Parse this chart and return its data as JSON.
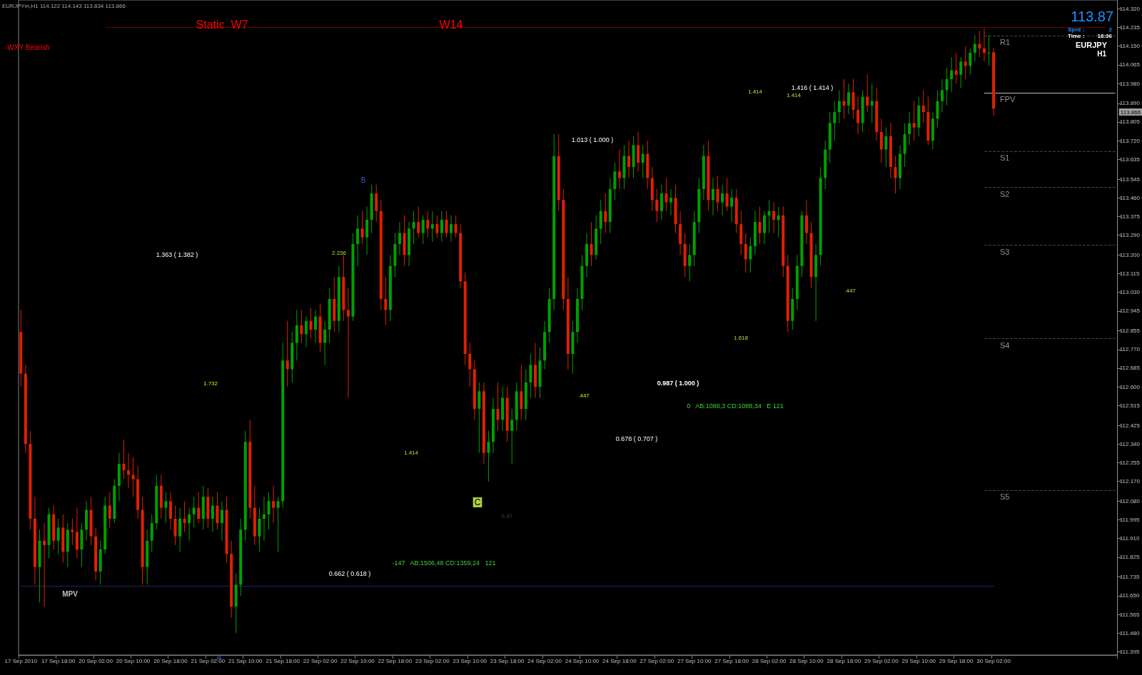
{
  "chart_data": {
    "type": "candlestick",
    "categories": [
      "17 Sep 2010",
      null,
      null,
      null,
      null,
      null,
      null,
      null,
      "17 Sep 18:00",
      null,
      null,
      null,
      null,
      null,
      null,
      null,
      "20 Sep 02:00",
      null,
      null,
      null,
      null,
      null,
      null,
      null,
      "20 Sep 10:00",
      null,
      null,
      null,
      null,
      null,
      null,
      null,
      "20 Sep 18:00",
      null,
      null,
      null,
      null,
      null,
      null,
      null,
      "21 Sep 02:00",
      null,
      null,
      null,
      null,
      null,
      null,
      null,
      "21 Sep 10:00",
      null,
      null,
      null,
      null,
      null,
      null,
      null,
      "21 Sep 18:00",
      null,
      null,
      null,
      null,
      null,
      null,
      null,
      "22 Sep 02:00",
      null,
      null,
      null,
      null,
      null,
      null,
      null,
      "22 Sep 10:00",
      null,
      null,
      null,
      null,
      null,
      null,
      null,
      "22 Sep 18:00",
      null,
      null,
      null,
      null,
      null,
      null,
      null,
      "23 Sep 02:00",
      null,
      null,
      null,
      null,
      null,
      null,
      null,
      "23 Sep 10:00",
      null,
      null,
      null,
      null,
      null,
      null,
      null,
      "23 Sep 18:00",
      null,
      null,
      null,
      null,
      null,
      null,
      null,
      "24 Sep 02:00",
      null,
      null,
      null,
      null,
      null,
      null,
      null,
      "24 Sep 10:00",
      null,
      null,
      null,
      null,
      null,
      null,
      null,
      "24 Sep 18:00",
      null,
      null,
      null,
      null,
      null,
      null,
      null,
      "27 Sep 02:00",
      null,
      null,
      null,
      null,
      null,
      null,
      null,
      "27 Sep 10:00",
      null,
      null,
      null,
      null,
      null,
      null,
      null,
      "27 Sep 18:00",
      null,
      null,
      null,
      null,
      null,
      null,
      null,
      "28 Sep 02:00",
      null,
      null,
      null,
      null,
      null,
      null,
      null,
      "28 Sep 10:00",
      null,
      null,
      null,
      null,
      null,
      null,
      null,
      "28 Sep 18:00",
      null,
      null,
      null,
      null,
      null,
      null,
      null,
      "29 Sep 02:00",
      null,
      null,
      null,
      null,
      null,
      null,
      null,
      "29 Sep 10:00",
      null,
      null,
      null,
      null,
      null,
      null,
      null,
      "29 Sep 18:00",
      null,
      null,
      null,
      null,
      null,
      null,
      null,
      "30 Sep 02:00",
      null,
      null,
      null,
      null,
      null,
      null,
      null,
      null,
      null,
      null,
      null,
      null,
      null,
      null,
      null,
      null,
      null,
      null,
      null,
      null,
      null,
      null,
      null,
      null,
      null,
      null
    ],
    "ohlc": [
      [
        112.85,
        112.95,
        112.6,
        112.66
      ],
      [
        112.66,
        112.7,
        112.3,
        112.34
      ],
      [
        112.34,
        112.4,
        111.95,
        112.0
      ],
      [
        112.0,
        112.1,
        111.7,
        111.78
      ],
      [
        111.78,
        111.95,
        111.62,
        111.9
      ],
      [
        111.9,
        111.98,
        111.6,
        111.88
      ],
      [
        111.88,
        112.05,
        111.82,
        112.02
      ],
      [
        112.02,
        112.06,
        111.86,
        111.9
      ],
      [
        111.9,
        112.0,
        111.84,
        111.96
      ],
      [
        111.96,
        112.02,
        111.8,
        111.85
      ],
      [
        111.85,
        111.98,
        111.78,
        111.95
      ],
      [
        111.95,
        112.0,
        111.88,
        111.94
      ],
      [
        111.94,
        112.05,
        111.82,
        111.86
      ],
      [
        111.86,
        111.98,
        111.78,
        111.95
      ],
      [
        111.95,
        112.08,
        111.9,
        112.04
      ],
      [
        112.04,
        112.1,
        111.88,
        111.92
      ],
      [
        111.92,
        111.96,
        111.72,
        111.76
      ],
      [
        111.76,
        111.9,
        111.7,
        111.86
      ],
      [
        111.86,
        112.1,
        111.84,
        112.06
      ],
      [
        112.06,
        112.12,
        111.96,
        112.0
      ],
      [
        112.0,
        112.18,
        111.98,
        112.15
      ],
      [
        112.15,
        112.3,
        112.08,
        112.25
      ],
      [
        112.25,
        112.36,
        112.18,
        112.22
      ],
      [
        112.22,
        112.3,
        112.14,
        112.2
      ],
      [
        112.2,
        112.28,
        112.1,
        112.18
      ],
      [
        112.18,
        112.24,
        112.0,
        112.04
      ],
      [
        112.04,
        112.1,
        111.7,
        111.78
      ],
      [
        111.78,
        111.95,
        111.7,
        111.9
      ],
      [
        111.9,
        112.02,
        111.85,
        111.98
      ],
      [
        111.98,
        112.2,
        111.95,
        112.15
      ],
      [
        112.15,
        112.2,
        112.0,
        112.05
      ],
      [
        112.05,
        112.12,
        111.98,
        112.08
      ],
      [
        112.08,
        112.12,
        111.95,
        112.0
      ],
      [
        112.0,
        112.06,
        111.88,
        111.92
      ],
      [
        111.92,
        112.05,
        111.85,
        112.0
      ],
      [
        112.0,
        112.08,
        111.94,
        111.98
      ],
      [
        111.98,
        112.05,
        111.9,
        112.02
      ],
      [
        112.02,
        112.1,
        111.96,
        112.05
      ],
      [
        112.05,
        112.12,
        111.98,
        112.0
      ],
      [
        112.0,
        112.15,
        111.95,
        112.1
      ],
      [
        112.1,
        112.14,
        111.96,
        112.0
      ],
      [
        112.0,
        112.1,
        111.94,
        112.06
      ],
      [
        112.06,
        112.12,
        111.95,
        111.98
      ],
      [
        111.98,
        112.08,
        111.9,
        112.04
      ],
      [
        112.04,
        112.1,
        111.8,
        111.84
      ],
      [
        111.84,
        111.9,
        111.55,
        111.6
      ],
      [
        111.6,
        111.75,
        111.48,
        111.7
      ],
      [
        111.7,
        112.0,
        111.65,
        111.95
      ],
      [
        111.95,
        112.4,
        111.9,
        112.35
      ],
      [
        112.35,
        112.45,
        112.0,
        112.05
      ],
      [
        112.05,
        112.15,
        111.88,
        111.92
      ],
      [
        111.92,
        112.05,
        111.85,
        112.0
      ],
      [
        112.0,
        112.1,
        111.9,
        112.02
      ],
      [
        112.02,
        112.12,
        111.95,
        112.08
      ],
      [
        112.08,
        112.15,
        111.98,
        112.05
      ],
      [
        112.05,
        112.1,
        111.85,
        112.08
      ],
      [
        112.08,
        112.8,
        112.05,
        112.72
      ],
      [
        112.72,
        112.9,
        112.6,
        112.68
      ],
      [
        112.68,
        112.85,
        112.62,
        112.8
      ],
      [
        112.8,
        112.95,
        112.72,
        112.88
      ],
      [
        112.88,
        112.95,
        112.8,
        112.84
      ],
      [
        112.84,
        112.92,
        112.78,
        112.9
      ],
      [
        112.9,
        112.96,
        112.82,
        112.86
      ],
      [
        112.86,
        112.95,
        112.8,
        112.92
      ],
      [
        112.92,
        112.98,
        112.76,
        112.8
      ],
      [
        112.8,
        112.9,
        112.7,
        112.86
      ],
      [
        112.86,
        113.05,
        112.8,
        113.0
      ],
      [
        113.0,
        113.1,
        112.85,
        112.9
      ],
      [
        112.9,
        113.15,
        112.85,
        113.1
      ],
      [
        113.1,
        113.2,
        112.9,
        112.95
      ],
      [
        112.95,
        113.05,
        112.55,
        112.92
      ],
      [
        112.92,
        113.3,
        112.9,
        113.25
      ],
      [
        113.25,
        113.38,
        113.15,
        113.32
      ],
      [
        113.32,
        113.4,
        113.25,
        113.28
      ],
      [
        113.28,
        113.42,
        113.2,
        113.36
      ],
      [
        113.36,
        113.52,
        113.3,
        113.48
      ],
      [
        113.48,
        113.52,
        113.35,
        113.4
      ],
      [
        113.4,
        113.45,
        112.95,
        113.0
      ],
      [
        113.0,
        113.1,
        112.88,
        112.95
      ],
      [
        112.95,
        113.2,
        112.9,
        113.15
      ],
      [
        113.15,
        113.3,
        113.1,
        113.25
      ],
      [
        113.25,
        113.35,
        113.2,
        113.3
      ],
      [
        113.3,
        113.38,
        113.15,
        113.2
      ],
      [
        113.2,
        113.35,
        113.15,
        113.32
      ],
      [
        113.32,
        113.4,
        113.25,
        113.35
      ],
      [
        113.35,
        113.42,
        113.28,
        113.3
      ],
      [
        113.3,
        113.38,
        113.25,
        113.36
      ],
      [
        113.36,
        113.4,
        113.28,
        113.32
      ],
      [
        113.32,
        113.4,
        113.26,
        113.34
      ],
      [
        113.34,
        113.38,
        113.28,
        113.3
      ],
      [
        113.3,
        113.4,
        113.26,
        113.36
      ],
      [
        113.36,
        113.4,
        113.28,
        113.3
      ],
      [
        113.3,
        113.38,
        113.26,
        113.34
      ],
      [
        113.34,
        113.38,
        113.28,
        113.3
      ],
      [
        113.3,
        113.34,
        113.05,
        113.08
      ],
      [
        113.08,
        113.12,
        112.7,
        112.75
      ],
      [
        112.75,
        112.8,
        112.6,
        112.68
      ],
      [
        112.68,
        112.72,
        112.45,
        112.5
      ],
      [
        112.5,
        112.62,
        112.3,
        112.58
      ],
      [
        112.58,
        112.62,
        112.25,
        112.3
      ],
      [
        112.3,
        112.4,
        112.17,
        112.35
      ],
      [
        112.35,
        112.55,
        112.3,
        112.5
      ],
      [
        112.5,
        112.62,
        112.4,
        112.45
      ],
      [
        112.45,
        112.6,
        112.4,
        112.55
      ],
      [
        112.55,
        112.6,
        112.35,
        112.4
      ],
      [
        112.4,
        112.5,
        112.25,
        112.45
      ],
      [
        112.45,
        112.62,
        112.4,
        112.58
      ],
      [
        112.58,
        112.7,
        112.45,
        112.5
      ],
      [
        112.5,
        112.68,
        112.45,
        112.62
      ],
      [
        112.62,
        112.75,
        112.55,
        112.7
      ],
      [
        112.7,
        112.8,
        112.55,
        112.6
      ],
      [
        112.6,
        112.78,
        112.55,
        112.72
      ],
      [
        112.72,
        112.9,
        112.68,
        112.85
      ],
      [
        112.85,
        113.05,
        112.8,
        113.0
      ],
      [
        113.0,
        113.75,
        112.95,
        113.65
      ],
      [
        113.65,
        113.75,
        113.4,
        113.45
      ],
      [
        113.45,
        113.5,
        112.95,
        113.0
      ],
      [
        113.0,
        113.1,
        112.68,
        112.75
      ],
      [
        112.75,
        112.9,
        112.66,
        112.85
      ],
      [
        112.85,
        113.05,
        112.8,
        113.0
      ],
      [
        113.0,
        113.2,
        112.95,
        113.15
      ],
      [
        113.15,
        113.3,
        113.1,
        113.25
      ],
      [
        113.25,
        113.35,
        113.15,
        113.2
      ],
      [
        113.2,
        113.38,
        113.18,
        113.32
      ],
      [
        113.32,
        113.45,
        113.25,
        113.4
      ],
      [
        113.4,
        113.48,
        113.3,
        113.35
      ],
      [
        113.35,
        113.55,
        113.3,
        113.5
      ],
      [
        113.5,
        113.62,
        113.45,
        113.58
      ],
      [
        113.58,
        113.68,
        113.5,
        113.55
      ],
      [
        113.55,
        113.7,
        113.5,
        113.65
      ],
      [
        113.65,
        113.72,
        113.55,
        113.6
      ],
      [
        113.6,
        113.74,
        113.55,
        113.7
      ],
      [
        113.7,
        113.76,
        113.58,
        113.62
      ],
      [
        113.62,
        113.7,
        113.55,
        113.66
      ],
      [
        113.66,
        113.72,
        113.5,
        113.55
      ],
      [
        113.55,
        113.6,
        113.4,
        113.45
      ],
      [
        113.45,
        113.5,
        113.35,
        113.4
      ],
      [
        113.4,
        113.52,
        113.36,
        113.48
      ],
      [
        113.48,
        113.55,
        113.4,
        113.44
      ],
      [
        113.44,
        113.5,
        113.38,
        113.46
      ],
      [
        113.46,
        113.52,
        113.3,
        113.34
      ],
      [
        113.34,
        113.4,
        113.2,
        113.25
      ],
      [
        113.25,
        113.3,
        113.1,
        113.15
      ],
      [
        113.15,
        113.25,
        113.08,
        113.2
      ],
      [
        113.2,
        113.4,
        113.15,
        113.35
      ],
      [
        113.35,
        113.55,
        113.3,
        113.5
      ],
      [
        113.5,
        113.7,
        113.45,
        113.65
      ],
      [
        113.65,
        113.72,
        113.4,
        113.45
      ],
      [
        113.45,
        113.55,
        113.38,
        113.5
      ],
      [
        113.5,
        113.56,
        113.4,
        113.44
      ],
      [
        113.44,
        113.52,
        113.38,
        113.48
      ],
      [
        113.48,
        113.55,
        113.4,
        113.42
      ],
      [
        113.42,
        113.5,
        113.35,
        113.46
      ],
      [
        113.46,
        113.5,
        113.3,
        113.34
      ],
      [
        113.34,
        113.4,
        113.2,
        113.25
      ],
      [
        113.25,
        113.3,
        113.12,
        113.18
      ],
      [
        113.18,
        113.28,
        113.12,
        113.24
      ],
      [
        113.24,
        113.4,
        113.2,
        113.35
      ],
      [
        113.35,
        113.42,
        113.25,
        113.3
      ],
      [
        113.3,
        113.4,
        113.25,
        113.38
      ],
      [
        113.38,
        113.45,
        113.3,
        113.4
      ],
      [
        113.4,
        113.44,
        113.3,
        113.36
      ],
      [
        113.36,
        113.42,
        113.28,
        113.38
      ],
      [
        113.38,
        113.42,
        113.1,
        113.15
      ],
      [
        113.15,
        113.2,
        112.85,
        112.9
      ],
      [
        112.9,
        113.05,
        112.86,
        113.0
      ],
      [
        113.0,
        113.2,
        112.95,
        113.15
      ],
      [
        113.15,
        113.4,
        113.1,
        113.38
      ],
      [
        113.38,
        113.45,
        113.25,
        113.3
      ],
      [
        113.3,
        113.35,
        113.05,
        113.1
      ],
      [
        113.1,
        113.25,
        112.9,
        113.2
      ],
      [
        113.2,
        113.6,
        113.15,
        113.55
      ],
      [
        113.55,
        113.72,
        113.5,
        113.68
      ],
      [
        113.68,
        113.85,
        113.62,
        113.8
      ],
      [
        113.8,
        113.9,
        113.72,
        113.85
      ],
      [
        113.85,
        113.95,
        113.8,
        113.9
      ],
      [
        113.9,
        114.0,
        113.82,
        113.88
      ],
      [
        113.88,
        113.98,
        113.84,
        113.94
      ],
      [
        113.94,
        114.0,
        113.82,
        113.86
      ],
      [
        113.86,
        113.92,
        113.75,
        113.8
      ],
      [
        113.8,
        113.95,
        113.76,
        113.92
      ],
      [
        113.92,
        114.02,
        113.85,
        113.88
      ],
      [
        113.88,
        113.98,
        113.8,
        113.9
      ],
      [
        113.9,
        113.96,
        113.72,
        113.76
      ],
      [
        113.76,
        113.82,
        113.62,
        113.68
      ],
      [
        113.68,
        113.78,
        113.6,
        113.74
      ],
      [
        113.74,
        113.8,
        113.55,
        113.6
      ],
      [
        113.6,
        113.65,
        113.48,
        113.55
      ],
      [
        113.55,
        113.7,
        113.5,
        113.66
      ],
      [
        113.66,
        113.8,
        113.6,
        113.75
      ],
      [
        113.75,
        113.85,
        113.7,
        113.8
      ],
      [
        113.8,
        113.9,
        113.72,
        113.78
      ],
      [
        113.78,
        113.92,
        113.74,
        113.88
      ],
      [
        113.88,
        113.95,
        113.8,
        113.85
      ],
      [
        113.85,
        113.92,
        113.7,
        113.72
      ],
      [
        113.72,
        113.85,
        113.68,
        113.82
      ],
      [
        113.82,
        113.95,
        113.78,
        113.9
      ],
      [
        113.9,
        114.0,
        113.85,
        113.95
      ],
      [
        113.95,
        114.05,
        113.88,
        114.0
      ],
      [
        114.0,
        114.1,
        113.94,
        114.04
      ],
      [
        114.04,
        114.12,
        113.98,
        114.02
      ],
      [
        114.02,
        114.1,
        113.96,
        114.08
      ],
      [
        114.08,
        114.15,
        114.0,
        114.06
      ],
      [
        114.06,
        114.14,
        114.02,
        114.12
      ],
      [
        114.12,
        114.2,
        114.08,
        114.16
      ],
      [
        114.16,
        114.22,
        114.1,
        114.14
      ],
      [
        114.14,
        114.23,
        114.08,
        114.12
      ],
      [
        114.12,
        114.2,
        114.06,
        114.12
      ],
      [
        114.122,
        114.143,
        113.834,
        113.866
      ],
      null,
      null,
      null,
      null,
      null,
      null,
      null,
      null,
      null,
      null,
      null,
      null,
      null,
      null,
      null,
      null,
      null,
      null,
      null,
      null,
      null,
      null,
      null,
      null,
      null,
      null
    ],
    "ylim": [
      111.38,
      114.36
    ],
    "yticks": [
      {
        "value": 114.32,
        "label": "114.320"
      },
      114.235,
      {
        "value": 114.15,
        "label": "114.150"
      },
      114.065,
      {
        "value": 113.98,
        "label": "113.980"
      },
      {
        "value": 113.89,
        "label": "113.890"
      },
      113.805,
      {
        "value": 113.72,
        "label": "113.720"
      },
      113.635,
      113.545,
      {
        "value": 113.46,
        "label": "113.460"
      },
      113.375,
      {
        "value": 113.29,
        "label": "113.290"
      },
      {
        "value": 113.2,
        "label": "113.200"
      },
      113.115,
      {
        "value": 113.03,
        "label": "113.030"
      },
      112.945,
      112.855,
      {
        "value": 112.77,
        "label": "112.770"
      },
      112.685,
      {
        "value": 112.6,
        "label": "112.600"
      },
      112.515,
      112.425,
      {
        "value": 112.34,
        "label": "112.340"
      },
      112.255,
      {
        "value": 112.17,
        "label": "112.170"
      },
      {
        "value": 112.08,
        "label": "112.080"
      },
      111.995,
      {
        "value": 111.91,
        "label": "111.910"
      },
      111.825,
      111.735,
      {
        "value": 111.65,
        "label": "111.650"
      },
      111.565,
      {
        "value": 111.48,
        "label": "111.480"
      },
      111.395
    ],
    "grid": false,
    "ref_lines": [
      {
        "axis": "y",
        "value": 114.198,
        "label": "R1",
        "color": "#3a4a3a",
        "line_style": "dashed"
      },
      {
        "axis": "y",
        "value": 113.938,
        "label": "FPV",
        "color": "#c0c0c0",
        "line_style": "solid"
      },
      {
        "axis": "y",
        "value": 113.672,
        "label": "S1",
        "color": "#3a4a3a",
        "line_style": "dashed"
      },
      {
        "axis": "y",
        "value": 113.509,
        "label": "S2",
        "color": "#3a4a3a",
        "line_style": "dashed"
      },
      {
        "axis": "y",
        "value": 113.246,
        "label": "S3",
        "color": "#3a4a3a",
        "line_style": "dashed"
      },
      {
        "axis": "y",
        "value": 112.82,
        "label": "S4",
        "color": "#3a4a3a",
        "line_style": "dashed"
      },
      {
        "axis": "y",
        "value": 112.13,
        "label": "S5",
        "color": "#3a4a3a",
        "line_style": "dashed"
      },
      {
        "axis": "y",
        "value": 111.694,
        "label": "MPV",
        "color": "#1a2a6a",
        "line_style": "solid"
      },
      {
        "axis": "y",
        "value": 114.237,
        "color": "#700000",
        "line_style": "solid"
      }
    ],
    "annotations": [
      "EURJPYm,H1 114.122 114.143 113.834 113.866",
      "-WXY Bearish",
      "Static  W7",
      "W14",
      "1.363 ( 1.382 )",
      "1.732",
      "2.236",
      "1.414",
      "0.662 ( 0.618 )",
      "-147   AB:1506,48 CD:1359,24   121",
      "0.47",
      "C",
      "A",
      "B",
      "1.013 ( 1.000 )",
      ".447",
      "0.987 ( 1.000 )",
      "0   AB:1088,3 CD:1088,34   E 121",
      "0.678 ( 0.707 )",
      "1.618",
      "1.414",
      "1.414",
      "1.416 ( 1.414 )",
      ".447",
      "113.87",
      "Sprd :",
      "2",
      "Time :",
      "18:36",
      "EURJPY",
      "H1",
      "113.866"
    ]
  }
}
